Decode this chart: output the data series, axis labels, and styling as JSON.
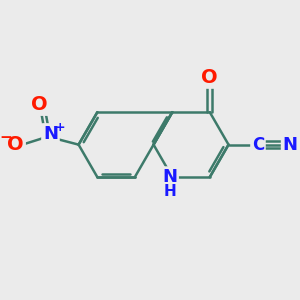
{
  "bg_color": "#ebebeb",
  "bond_color": "#3d7a6a",
  "bond_width": 1.8,
  "atom_colors": {
    "N": "#1a1aff",
    "O": "#ff1a00",
    "C": "#1a1aff"
  },
  "font_size": 12,
  "fig_size": [
    3.0,
    3.0
  ],
  "dpi": 100
}
